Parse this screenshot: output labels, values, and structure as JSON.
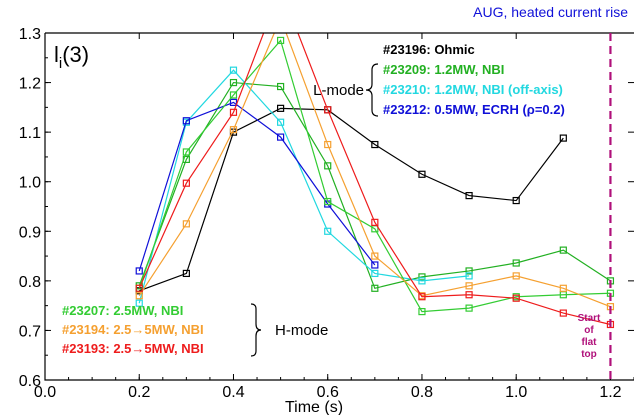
{
  "chart_data": {
    "type": "line",
    "title_top_right": "AUG, heated current rise",
    "ylabel_main": "l",
    "ylabel_sub": "i",
    "ylabel_tail": "(3)",
    "xlabel": "Time (s)",
    "xlim": [
      0.0,
      1.25
    ],
    "ylim": [
      0.6,
      1.3
    ],
    "x_ticks": [
      "0.0",
      "0.2",
      "0.4",
      "0.6",
      "0.8",
      "1.0",
      "1.2"
    ],
    "x_tick_values": [
      0.0,
      0.2,
      0.4,
      0.6,
      0.8,
      1.0,
      1.2
    ],
    "y_ticks": [
      "0.6",
      "0.7",
      "0.8",
      "0.9",
      "1.0",
      "1.1",
      "1.2",
      "1.3"
    ],
    "y_tick_values": [
      0.6,
      0.7,
      0.8,
      0.9,
      1.0,
      1.1,
      1.2,
      1.3
    ],
    "l_mode_label": "L-mode",
    "h_mode_label": "H-mode",
    "flat_top_label": [
      "Start",
      "of",
      "flat",
      "top"
    ],
    "flat_top_x": 1.2,
    "series": [
      {
        "name": "#23196: Ohmic",
        "color": "#000000",
        "group": "L",
        "x": [
          0.2,
          0.3,
          0.4,
          0.5,
          0.6,
          0.7,
          0.8,
          0.9,
          1.0,
          1.1
        ],
        "y": [
          0.78,
          0.815,
          1.1,
          1.148,
          1.145,
          1.075,
          1.015,
          0.972,
          0.962,
          1.088
        ]
      },
      {
        "name": "#23209: 1.2MW, NBI",
        "color": "#22b022",
        "group": "L",
        "x": [
          0.2,
          0.3,
          0.4,
          0.5,
          0.6,
          0.7,
          0.8,
          0.9,
          1.0,
          1.1,
          1.2
        ],
        "y": [
          0.79,
          1.045,
          1.2,
          1.192,
          1.032,
          0.785,
          0.808,
          0.82,
          0.836,
          0.862,
          0.8
        ]
      },
      {
        "name": "#23210: 1.2MW, NBI (off-axis)",
        "color": "#22d8e0",
        "group": "L",
        "x": [
          0.2,
          0.3,
          0.4,
          0.5,
          0.6,
          0.7,
          0.8,
          0.9
        ],
        "y": [
          0.755,
          1.12,
          1.225,
          1.12,
          0.9,
          0.815,
          0.8,
          0.81
        ]
      },
      {
        "name": "#23212: 0.5MW, ECRH (ρ=0.2)",
        "color": "#1010d8",
        "group": "L",
        "x": [
          0.2,
          0.3,
          0.4,
          0.5,
          0.6,
          0.7
        ],
        "y": [
          0.82,
          1.123,
          1.16,
          1.09,
          0.955,
          0.832
        ]
      },
      {
        "name": "#23207: 2.5MW, NBI",
        "color": "#33cc33",
        "group": "H",
        "x": [
          0.2,
          0.3,
          0.4,
          0.5,
          0.6,
          0.7,
          0.8,
          0.9,
          1.0,
          1.1,
          1.2
        ],
        "y": [
          0.785,
          1.06,
          1.175,
          1.285,
          0.96,
          0.905,
          0.738,
          0.745,
          0.768,
          0.772,
          0.775
        ]
      },
      {
        "name": "#23194: 2.5→5MW, NBI",
        "color": "#f5a030",
        "group": "H",
        "x": [
          0.2,
          0.3,
          0.4,
          0.5,
          0.6,
          0.7,
          0.8,
          0.9,
          1.0,
          1.1,
          1.2
        ],
        "y": [
          0.77,
          0.915,
          1.105,
          1.33,
          1.075,
          0.85,
          0.77,
          0.79,
          0.81,
          0.785,
          0.748
        ]
      },
      {
        "name": "#23193: 2.5→5MW, NBI",
        "color": "#ee1c1c",
        "group": "H",
        "x": [
          0.2,
          0.3,
          0.4,
          0.5,
          0.6,
          0.7,
          0.8,
          0.9,
          1.0,
          1.1,
          1.2
        ],
        "y": [
          0.785,
          0.997,
          1.14,
          1.39,
          1.145,
          0.918,
          0.768,
          0.772,
          0.765,
          0.735,
          0.712
        ]
      }
    ]
  }
}
